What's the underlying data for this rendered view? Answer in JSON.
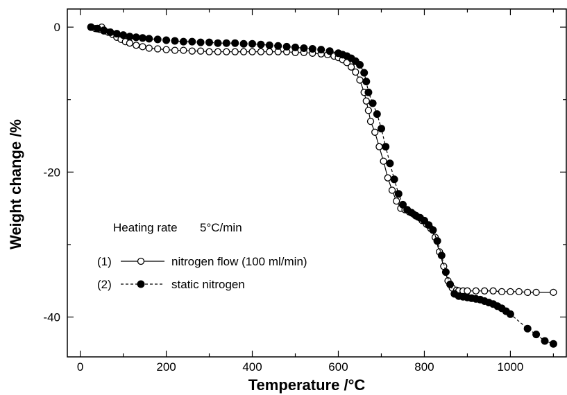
{
  "chart_data": {
    "type": "scatter",
    "title": "",
    "xlabel": "Temperature /°C",
    "ylabel": "Weight change /%",
    "xlim": [
      -30,
      1130
    ],
    "ylim": [
      -45.5,
      2.5
    ],
    "x_ticks": [
      0,
      200,
      400,
      600,
      800,
      1000
    ],
    "y_ticks": [
      0,
      -20,
      -40
    ],
    "grid": false,
    "annotation": {
      "heating_label": "Heating rate",
      "heating_value": "5°C/min"
    },
    "series": [
      {
        "name": "nitrogen flow (100 ml/min)",
        "legend_number": "(1)",
        "marker": "open-circle",
        "line": "solid",
        "x": [
          25,
          35,
          45,
          50,
          55,
          65,
          75,
          85,
          95,
          105,
          115,
          130,
          145,
          160,
          180,
          200,
          220,
          240,
          260,
          280,
          300,
          320,
          340,
          360,
          380,
          400,
          420,
          440,
          460,
          480,
          500,
          520,
          540,
          560,
          575,
          590,
          600,
          610,
          620,
          630,
          640,
          650,
          660,
          665,
          670,
          675,
          685,
          695,
          705,
          715,
          725,
          735,
          745,
          755,
          765,
          775,
          785,
          795,
          805,
          815,
          825,
          835,
          845,
          855,
          865,
          875,
          880,
          890,
          900,
          920,
          940,
          960,
          980,
          1000,
          1020,
          1040,
          1060,
          1100
        ],
        "y": [
          0,
          -0.2,
          -0.3,
          0,
          -0.4,
          -0.7,
          -1.0,
          -1.4,
          -1.7,
          -2.0,
          -2.2,
          -2.5,
          -2.7,
          -2.9,
          -3.0,
          -3.1,
          -3.2,
          -3.2,
          -3.3,
          -3.3,
          -3.4,
          -3.4,
          -3.4,
          -3.4,
          -3.4,
          -3.4,
          -3.4,
          -3.4,
          -3.4,
          -3.4,
          -3.5,
          -3.5,
          -3.6,
          -3.7,
          -3.8,
          -4.0,
          -4.2,
          -4.5,
          -4.9,
          -5.5,
          -6.2,
          -7.3,
          -9.0,
          -10.2,
          -11.5,
          -13.0,
          -14.5,
          -16.5,
          -18.5,
          -20.8,
          -22.5,
          -24.0,
          -25.0,
          -25.2,
          -25.5,
          -25.8,
          -26.2,
          -26.7,
          -27.2,
          -27.8,
          -29.0,
          -31.0,
          -33.0,
          -35.0,
          -36.0,
          -36.3,
          -36.4,
          -36.4,
          -36.4,
          -36.4,
          -36.4,
          -36.4,
          -36.5,
          -36.5,
          -36.5,
          -36.6,
          -36.6,
          -36.6
        ]
      },
      {
        "name": "static nitrogen",
        "legend_number": "(2)",
        "marker": "filled-circle",
        "line": "dashed",
        "x": [
          25,
          40,
          55,
          70,
          85,
          100,
          115,
          130,
          145,
          160,
          180,
          200,
          220,
          240,
          260,
          280,
          300,
          320,
          340,
          360,
          380,
          400,
          420,
          440,
          460,
          480,
          500,
          520,
          540,
          560,
          580,
          600,
          610,
          620,
          630,
          640,
          650,
          660,
          665,
          670,
          680,
          690,
          700,
          710,
          720,
          730,
          740,
          750,
          760,
          770,
          780,
          790,
          800,
          810,
          820,
          830,
          840,
          850,
          860,
          870,
          880,
          890,
          900,
          910,
          920,
          930,
          940,
          950,
          960,
          970,
          980,
          990,
          1000,
          1040,
          1060,
          1080,
          1100
        ],
        "y": [
          0,
          -0.2,
          -0.5,
          -0.7,
          -0.9,
          -1.1,
          -1.3,
          -1.4,
          -1.5,
          -1.6,
          -1.7,
          -1.8,
          -1.9,
          -2.0,
          -2.0,
          -2.1,
          -2.1,
          -2.2,
          -2.2,
          -2.2,
          -2.3,
          -2.3,
          -2.4,
          -2.5,
          -2.6,
          -2.7,
          -2.8,
          -2.9,
          -3.0,
          -3.1,
          -3.3,
          -3.6,
          -3.8,
          -4.0,
          -4.3,
          -4.7,
          -5.2,
          -6.3,
          -7.5,
          -9.0,
          -10.5,
          -12.0,
          -14.0,
          -16.5,
          -18.8,
          -21.0,
          -23.0,
          -24.5,
          -25.2,
          -25.6,
          -26.0,
          -26.3,
          -26.7,
          -27.3,
          -28.0,
          -29.5,
          -31.5,
          -33.8,
          -35.5,
          -36.8,
          -37.1,
          -37.2,
          -37.3,
          -37.4,
          -37.5,
          -37.6,
          -37.8,
          -38.0,
          -38.2,
          -38.5,
          -38.8,
          -39.2,
          -39.6,
          -41.6,
          -42.4,
          -43.3,
          -43.7
        ]
      }
    ]
  }
}
